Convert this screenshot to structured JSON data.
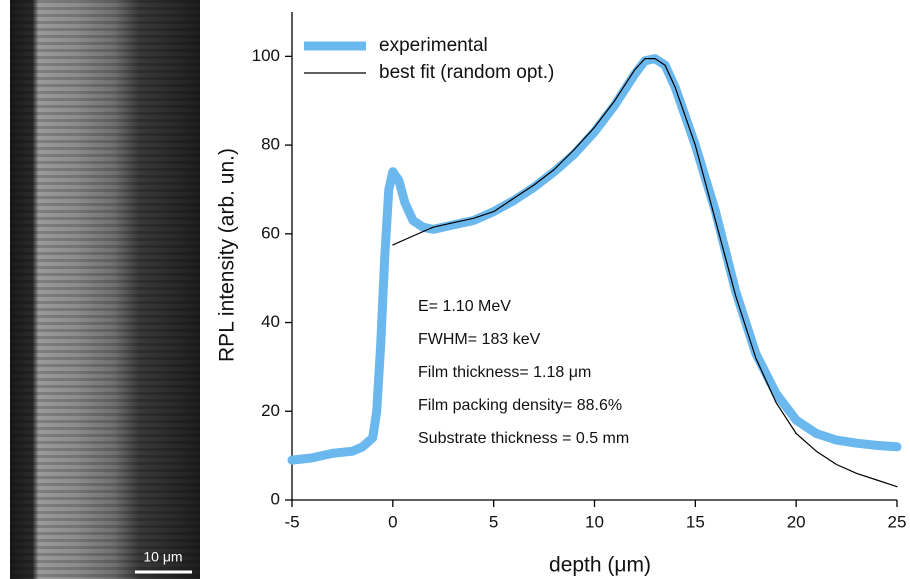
{
  "image": {
    "scale_bar": "10 μm"
  },
  "chart_data": {
    "type": "line",
    "x_label": "depth (μm)",
    "y_label": "RPL intensity (arb. un.)",
    "xlim": [
      -5,
      25
    ],
    "xticks": [
      -5,
      0,
      5,
      10,
      15,
      20,
      25
    ],
    "ylim": [
      0,
      110
    ],
    "yticks": [
      0,
      20,
      40,
      60,
      80,
      100
    ],
    "legend": "upper left",
    "annotations": [
      "E= 1.10 MeV",
      "FWHM= 183 keV",
      "Film thickness= 1.18 μm",
      "Film packing density= 88.6%",
      "Substrate thickness = 0.5 mm"
    ],
    "series": [
      {
        "name": "experimental",
        "color": "#6ab8ee",
        "width": 9,
        "x": [
          -5,
          -4,
          -3,
          -2,
          -1.5,
          -1,
          -0.8,
          -0.6,
          -0.4,
          -0.2,
          0,
          0.3,
          0.6,
          1,
          1.5,
          2,
          3,
          4,
          5,
          6,
          7,
          8,
          9,
          10,
          11,
          12,
          12.5,
          13,
          13.5,
          14,
          15,
          16,
          17,
          18,
          19,
          20,
          21,
          22,
          23,
          24,
          25
        ],
        "values": [
          9,
          9.5,
          10.5,
          11,
          12,
          14,
          20,
          35,
          55,
          70,
          74,
          72,
          67,
          63,
          61.5,
          61,
          62,
          63,
          65,
          67.5,
          70.5,
          74,
          78,
          83,
          89,
          96,
          99,
          99.5,
          98,
          93,
          80,
          65,
          47,
          33,
          24,
          18,
          15,
          13.5,
          12.8,
          12.3,
          12
        ]
      },
      {
        "name": "best fit (random opt.)",
        "color": "#000000",
        "width": 1.2,
        "x": [
          0,
          1,
          2,
          3,
          4,
          5,
          6,
          7,
          8,
          9,
          10,
          11,
          12,
          12.5,
          13,
          13.5,
          14,
          15,
          16,
          17,
          18,
          19,
          20,
          21,
          22,
          23,
          24,
          25
        ],
        "values": [
          57.5,
          59.5,
          61.5,
          62.5,
          63.5,
          65,
          68,
          71,
          74.5,
          79,
          84,
          90,
          97,
          99.5,
          99.5,
          98,
          93,
          80,
          63,
          46,
          32,
          22,
          15,
          11,
          8,
          6,
          4.5,
          3
        ]
      }
    ]
  }
}
